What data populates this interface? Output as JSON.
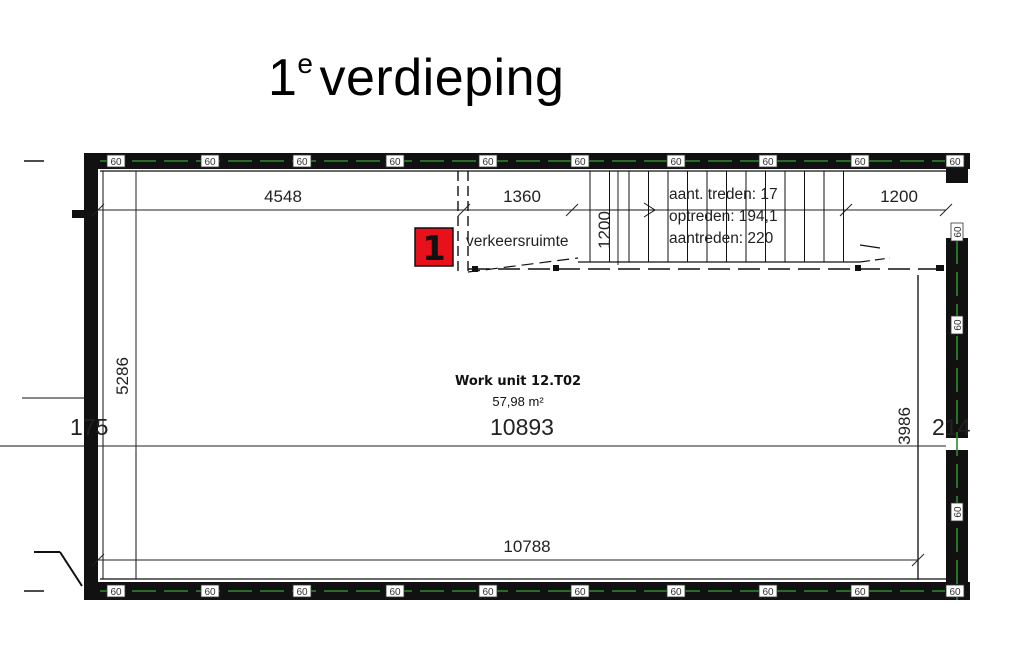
{
  "title": {
    "text": "verdieping",
    "ordinal": "1",
    "superscript": "e"
  },
  "dimensions": {
    "top_left": "4548",
    "top_middle": "1360",
    "top_right": "1200",
    "stair_width": "1200",
    "left_vertical": "5286",
    "left_wall": "175",
    "total_length": "10893",
    "right_vertical": "3986",
    "right_wall": "214",
    "bottom": "10788"
  },
  "stair": {
    "line1": "aant. treden: 17",
    "line2": "optreden: 194,1",
    "line3": "aantreden: 220"
  },
  "room": {
    "label": "verkeersruimte",
    "marker": "1"
  },
  "unit": {
    "name": "Work unit 12.T02",
    "area": "57,98 m²"
  },
  "wall_tag": "60",
  "colors": {
    "wall": "#111111",
    "wall_dash": "#2e8b2e",
    "marker": "#e8101a",
    "line": "#222222"
  }
}
